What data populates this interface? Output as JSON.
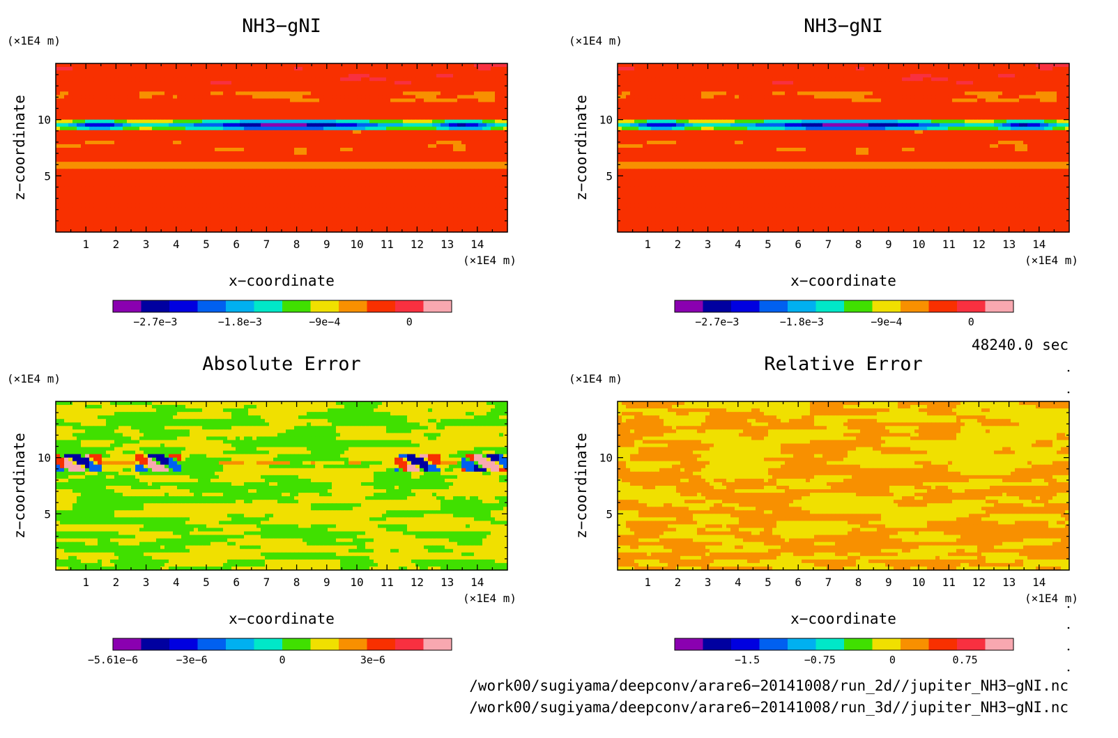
{
  "chart_data": [
    {
      "type": "heatmap",
      "title": "NH3−gNI",
      "xlabel": "x−coordinate",
      "ylabel": "z−coordinate",
      "x_unit": "(×1E4 m)",
      "y_unit": "(×1E4 m)",
      "xlim": [
        0,
        15
      ],
      "ylim": [
        0,
        15
      ],
      "x_ticks": [
        "1",
        "2",
        "3",
        "4",
        "5",
        "6",
        "7",
        "8",
        "9",
        "10",
        "11",
        "12",
        "13",
        "14"
      ],
      "y_ticks": [
        "5",
        "10"
      ],
      "field": "band",
      "colorbar_colors": [
        "#8a00b0",
        "#0000a0",
        "#0000e0",
        "#0060f0",
        "#00b0f0",
        "#00e8c8",
        "#40e000",
        "#f0e000",
        "#f89000",
        "#f83000",
        "#f83040",
        "#f8a8b0"
      ],
      "colorbar_labels": [
        "−2.7e−3",
        "−1.8e−3",
        "−9e−4",
        "0"
      ],
      "colorbar_tick_values": [
        -0.0027,
        -0.0018,
        -0.0009,
        0
      ],
      "colorbar_range": [
        -0.00315,
        0.00045
      ]
    },
    {
      "type": "heatmap",
      "title": "NH3−gNI",
      "xlabel": "x−coordinate",
      "ylabel": "z−coordinate",
      "x_unit": "(×1E4 m)",
      "y_unit": "(×1E4 m)",
      "xlim": [
        0,
        15
      ],
      "ylim": [
        0,
        15
      ],
      "x_ticks": [
        "1",
        "2",
        "3",
        "4",
        "5",
        "6",
        "7",
        "8",
        "9",
        "10",
        "11",
        "12",
        "13",
        "14"
      ],
      "y_ticks": [
        "5",
        "10"
      ],
      "field": "band",
      "colorbar_colors": [
        "#8a00b0",
        "#0000a0",
        "#0000e0",
        "#0060f0",
        "#00b0f0",
        "#00e8c8",
        "#40e000",
        "#f0e000",
        "#f89000",
        "#f83000",
        "#f83040",
        "#f8a8b0"
      ],
      "colorbar_labels": [
        "−2.7e−3",
        "−1.8e−3",
        "−9e−4",
        "0"
      ],
      "colorbar_tick_values": [
        -0.0027,
        -0.0018,
        -0.0009,
        0
      ],
      "colorbar_range": [
        -0.00315,
        0.00045
      ]
    },
    {
      "type": "heatmap",
      "title": "Absolute Error",
      "xlabel": "x−coordinate",
      "ylabel": "z−coordinate",
      "x_unit": "(×1E4 m)",
      "y_unit": "(×1E4 m)",
      "xlim": [
        0,
        15
      ],
      "ylim": [
        0,
        15
      ],
      "x_ticks": [
        "1",
        "2",
        "3",
        "4",
        "5",
        "6",
        "7",
        "8",
        "9",
        "10",
        "11",
        "12",
        "13",
        "14"
      ],
      "y_ticks": [
        "5",
        "10"
      ],
      "field": "abs",
      "colorbar_colors": [
        "#8a00b0",
        "#0000a0",
        "#0000e0",
        "#0060f0",
        "#00b0f0",
        "#00e8c8",
        "#40e000",
        "#f0e000",
        "#f89000",
        "#f83000",
        "#f83040",
        "#f8a8b0"
      ],
      "colorbar_labels": [
        "−5.61e−6",
        "−3e−6",
        "0",
        "3e−6"
      ],
      "colorbar_tick_values": [
        -5.61e-06,
        -3e-06,
        0,
        3e-06
      ],
      "colorbar_range": [
        -5.61e-06,
        5.61e-06
      ]
    },
    {
      "type": "heatmap",
      "title": "Relative Error",
      "xlabel": "x−coordinate",
      "ylabel": "z−coordinate",
      "x_unit": "(×1E4 m)",
      "y_unit": "(×1E4 m)",
      "xlim": [
        0,
        15
      ],
      "ylim": [
        0,
        15
      ],
      "x_ticks": [
        "1",
        "2",
        "3",
        "4",
        "5",
        "6",
        "7",
        "8",
        "9",
        "10",
        "11",
        "12",
        "13",
        "14"
      ],
      "y_ticks": [
        "5",
        "10"
      ],
      "field": "rel",
      "colorbar_colors": [
        "#8a00b0",
        "#0000a0",
        "#0000e0",
        "#0060f0",
        "#00b0f0",
        "#00e8c8",
        "#40e000",
        "#f0e000",
        "#f89000",
        "#f83000",
        "#f83040",
        "#f8a8b0"
      ],
      "colorbar_labels": [
        "−1.5",
        "−0.75",
        "0",
        "0.75"
      ],
      "colorbar_tick_values": [
        -1.5,
        -0.75,
        0,
        0.75
      ],
      "colorbar_range": [
        -2.25,
        1.25
      ]
    }
  ],
  "time_label": "48240.0 sec",
  "footer_lines": [
    "/work00/sugiyama/deepconv/arare6−20141008/run_2d//jupiter_NH3−gNI.nc",
    "/work00/sugiyama/deepconv/arare6−20141008/run_3d//jupiter_NH3−gNI.nc"
  ]
}
